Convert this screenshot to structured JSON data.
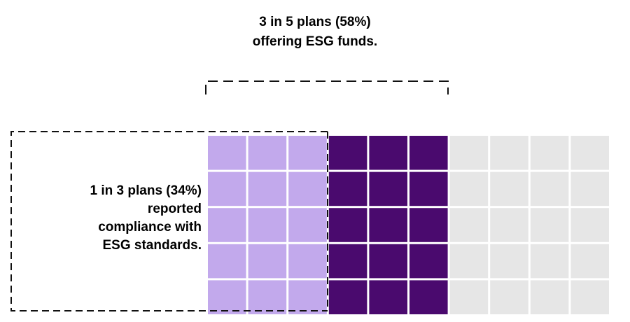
{
  "chart_data": {
    "type": "waffle",
    "rows": 5,
    "columns": 10,
    "column_groups": [
      {
        "key": "compliance",
        "columns": 3,
        "color": "#c2a9ec"
      },
      {
        "key": "esg_only",
        "columns": 3,
        "color": "#4a0a6e"
      },
      {
        "key": "remaining",
        "columns": 4,
        "color": "#e6e6e6"
      }
    ],
    "annotations": {
      "offering": {
        "lines": [
          "3 in 5 plans (58%)",
          "offering ESG funds."
        ],
        "value_percent": 58
      },
      "compliance": {
        "lines": [
          "1 in 3 plans (34%)",
          "reported",
          "compliance with",
          "ESG standards."
        ],
        "value_percent": 34
      }
    }
  }
}
